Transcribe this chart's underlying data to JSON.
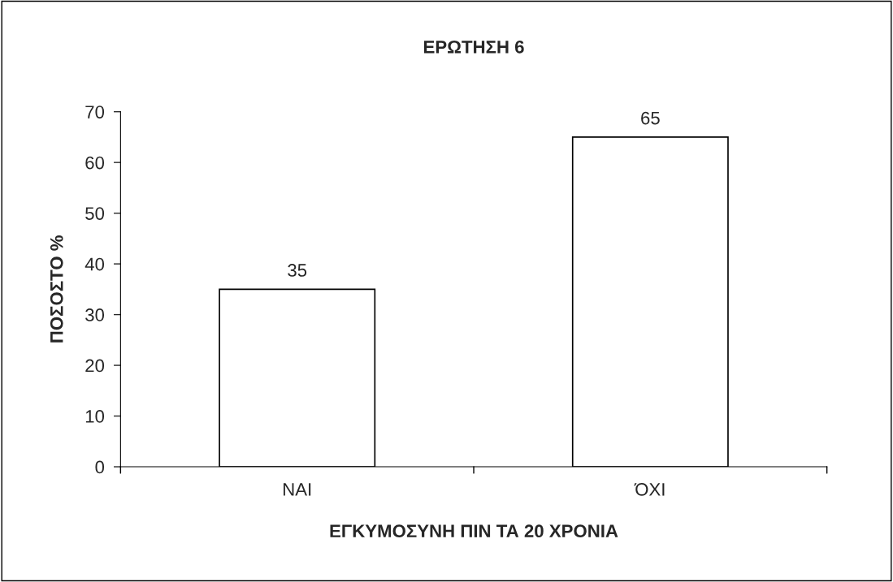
{
  "chart_data": {
    "type": "bar",
    "title": "ΕΡΩΤΗΣΗ 6",
    "xlabel": "ΕΓΚΥΜΟΣΥΝΗ ΠΙΝ ΤΑ 20 ΧΡΟΝΙΑ",
    "ylabel": "ΠΟΣΟΣΤΟ %",
    "categories": [
      "ΝΑΙ",
      "ΌΧΙ"
    ],
    "values": [
      35,
      65
    ],
    "color": "#ffffff",
    "ylim": [
      0,
      70
    ],
    "yticks": [
      0,
      10,
      20,
      30,
      40,
      50,
      60,
      70
    ],
    "data_labels": true,
    "grid": false,
    "legend": false
  }
}
